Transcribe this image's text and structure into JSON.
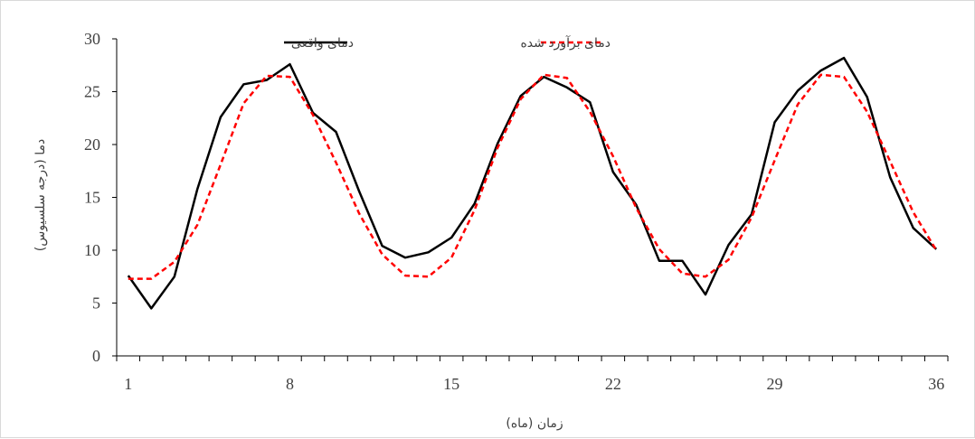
{
  "chart_data": {
    "type": "line",
    "title": "",
    "xlabel": "زمان (ماه)",
    "ylabel": "دما (درجه سلسیوس)",
    "xlim": [
      1,
      36
    ],
    "ylim": [
      0,
      30
    ],
    "x_ticks": [
      1,
      8,
      15,
      22,
      29,
      36
    ],
    "y_ticks": [
      0,
      5,
      10,
      15,
      20,
      25,
      30
    ],
    "grid": false,
    "legend_position": "top",
    "x": [
      1,
      2,
      3,
      4,
      5,
      6,
      7,
      8,
      9,
      10,
      11,
      12,
      13,
      14,
      15,
      16,
      17,
      18,
      19,
      20,
      21,
      22,
      23,
      24,
      25,
      26,
      27,
      28,
      29,
      30,
      31,
      32,
      33,
      34,
      35,
      36
    ],
    "series": [
      {
        "name": "دمای واقعی",
        "color": "#000000",
        "style": "solid",
        "values": [
          7.6,
          4.5,
          7.5,
          15.8,
          22.6,
          25.7,
          26.1,
          27.6,
          23.0,
          21.2,
          15.6,
          10.4,
          9.3,
          9.8,
          11.2,
          14.4,
          20.1,
          24.6,
          26.4,
          25.4,
          24.0,
          17.4,
          14.3,
          9.0,
          9.0,
          5.8,
          10.5,
          13.4,
          22.1,
          25.1,
          27.0,
          28.2,
          24.5,
          16.9,
          12.1,
          10.1
        ]
      },
      {
        "name": "دمای برآورد شده",
        "color": "#ff0000",
        "style": "dashed",
        "values": [
          7.3,
          7.3,
          8.9,
          12.4,
          18.1,
          23.9,
          26.5,
          26.4,
          22.8,
          18.3,
          13.5,
          9.6,
          7.6,
          7.5,
          9.3,
          13.8,
          19.7,
          24.3,
          26.6,
          26.3,
          23.1,
          18.9,
          14.0,
          10.1,
          7.8,
          7.5,
          9.1,
          13.1,
          18.5,
          23.8,
          26.6,
          26.4,
          23.1,
          18.4,
          13.6,
          10.0
        ]
      }
    ]
  }
}
